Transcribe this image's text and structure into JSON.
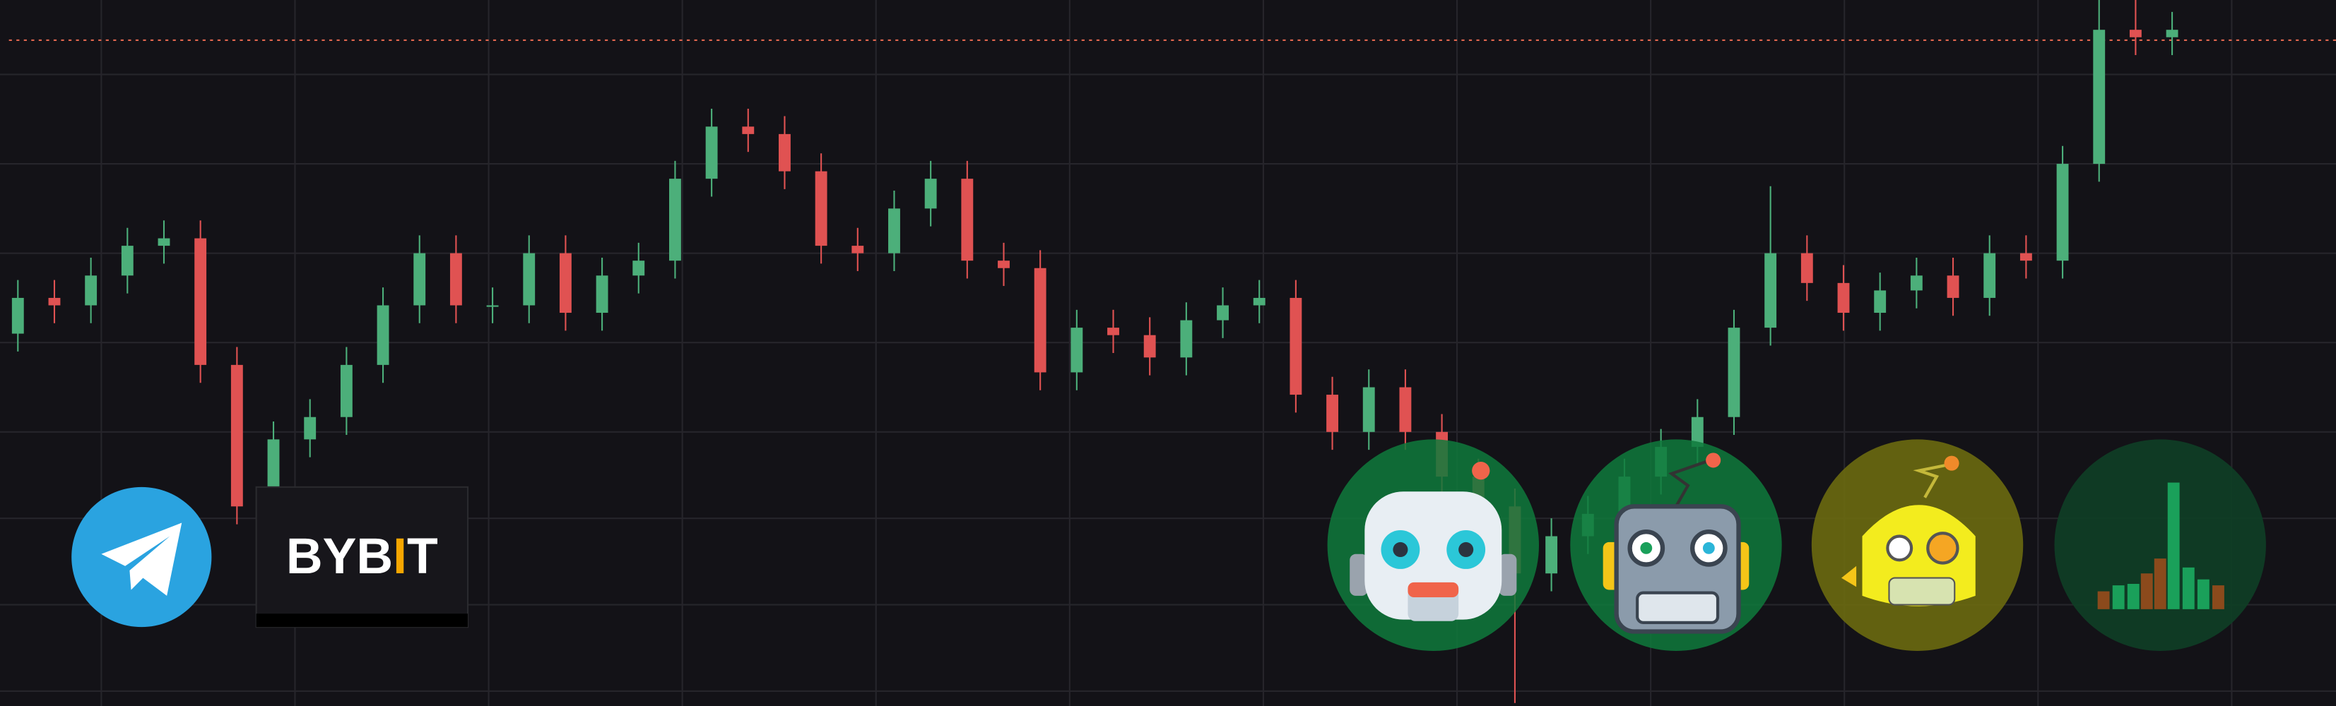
{
  "chart_data": {
    "type": "candlestick",
    "ylim": [
      0,
      474
    ],
    "open": [
      250,
      274,
      269,
      289,
      309,
      314,
      229,
      134,
      179,
      194,
      229,
      269,
      304,
      269,
      269,
      304,
      264,
      289,
      299,
      354,
      389,
      384,
      359,
      309,
      304,
      334,
      354,
      299,
      294,
      224,
      254,
      249,
      234,
      259,
      269,
      274,
      209,
      184,
      214,
      184,
      154,
      134,
      89,
      114,
      129,
      154,
      174,
      194,
      254,
      304,
      284,
      264,
      279,
      289,
      274,
      304,
      299,
      364,
      454,
      449
    ],
    "high": [
      286,
      286,
      301,
      321,
      326,
      326,
      241,
      191,
      206,
      241,
      281,
      316,
      316,
      281,
      316,
      316,
      301,
      311,
      366,
      401,
      401,
      396,
      371,
      321,
      346,
      366,
      366,
      311,
      306,
      266,
      266,
      261,
      271,
      281,
      286,
      286,
      221,
      226,
      226,
      196,
      166,
      146,
      126,
      141,
      166,
      186,
      206,
      266,
      349,
      316,
      296,
      291,
      301,
      301,
      316,
      316,
      376,
      474,
      474,
      466
    ],
    "low": [
      238,
      257,
      257,
      277,
      297,
      217,
      122,
      122,
      167,
      182,
      217,
      257,
      257,
      257,
      257,
      252,
      252,
      277,
      287,
      342,
      372,
      347,
      297,
      292,
      292,
      322,
      287,
      282,
      212,
      212,
      237,
      222,
      222,
      247,
      257,
      197,
      172,
      172,
      172,
      142,
      122,
      2,
      77,
      102,
      117,
      142,
      162,
      182,
      242,
      272,
      252,
      252,
      267,
      262,
      262,
      287,
      287,
      352,
      437,
      437
    ],
    "close": [
      274,
      269,
      289,
      309,
      314,
      229,
      134,
      179,
      194,
      229,
      269,
      304,
      269,
      269,
      304,
      264,
      289,
      299,
      354,
      389,
      384,
      359,
      309,
      304,
      334,
      354,
      299,
      294,
      224,
      254,
      249,
      234,
      259,
      269,
      274,
      209,
      184,
      214,
      184,
      154,
      134,
      89,
      114,
      129,
      154,
      174,
      194,
      254,
      304,
      284,
      264,
      279,
      289,
      274,
      304,
      299,
      364,
      454,
      449,
      454
    ],
    "up_color": "#4caf7a",
    "down_color": "#e05252"
  },
  "logo": {
    "left": "BYB",
    "accent": "I",
    "right": "T"
  }
}
